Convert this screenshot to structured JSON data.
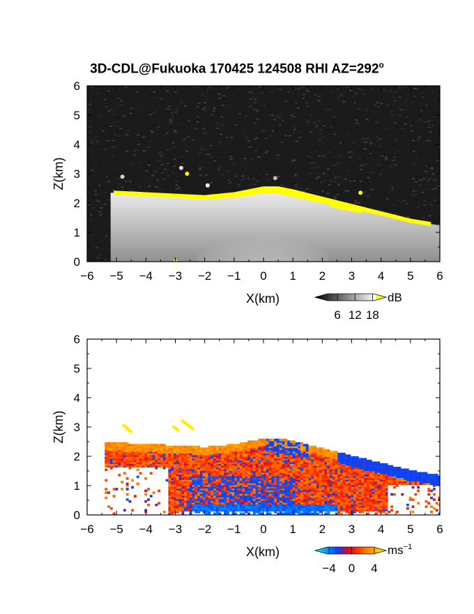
{
  "figure": {
    "title": "3D-CDL@Fukuoka 170425 124508 RHI AZ=292",
    "title_degree": "o"
  },
  "chart_data": [
    {
      "type": "heatmap",
      "name": "backscatter",
      "xlabel": "X(km)",
      "ylabel": "Z(km)",
      "xlim": [
        -6,
        6
      ],
      "ylim": [
        0,
        6
      ],
      "xticks": [
        "−6",
        "−5",
        "−4",
        "−3",
        "−2",
        "−1",
        "0",
        "1",
        "2",
        "3",
        "4",
        "5",
        "6"
      ],
      "yticks": [
        "0",
        "1",
        "2",
        "3",
        "4",
        "5",
        "6"
      ],
      "colorbar": {
        "unit": "dB",
        "ticks": [
          "6",
          "12",
          "18"
        ],
        "range": [
          0,
          21
        ],
        "scale": "gray-to-white, yellow above 18"
      },
      "layer_top": {
        "x": [
          -5.0,
          -4.0,
          -3.0,
          -2.0,
          -1.0,
          0.0,
          0.5,
          1.0,
          2.0,
          3.0,
          4.0,
          5.0,
          5.9
        ],
        "z": [
          2.4,
          2.35,
          2.3,
          2.25,
          2.35,
          2.55,
          2.55,
          2.45,
          2.2,
          1.95,
          1.7,
          1.45,
          1.3
        ]
      }
    },
    {
      "type": "heatmap",
      "name": "doppler_velocity",
      "xlabel": "X(km)",
      "ylabel": "Z(km)",
      "xlim": [
        -6,
        6
      ],
      "ylim": [
        0,
        6
      ],
      "xticks": [
        "−6",
        "−5",
        "−4",
        "−3",
        "−2",
        "−1",
        "0",
        "1",
        "2",
        "3",
        "4",
        "5",
        "6"
      ],
      "yticks": [
        "0",
        "1",
        "2",
        "3",
        "4",
        "5",
        "6"
      ],
      "colorbar": {
        "unit": "ms",
        "unit_exp": "−1",
        "ticks": [
          "−4",
          "0",
          "4"
        ],
        "range": [
          -5,
          5
        ],
        "scale": "cyan-blue-red-orange-yellow"
      }
    }
  ],
  "colors": {
    "panel_background": "#1b1b1b",
    "yellow": "#ffff00",
    "cbar_gray": [
      "#000000",
      "#ffffff"
    ],
    "cbar_vel": [
      "#00ffff",
      "#0044ff",
      "#ff0000",
      "#ff8800",
      "#ffff00"
    ]
  }
}
